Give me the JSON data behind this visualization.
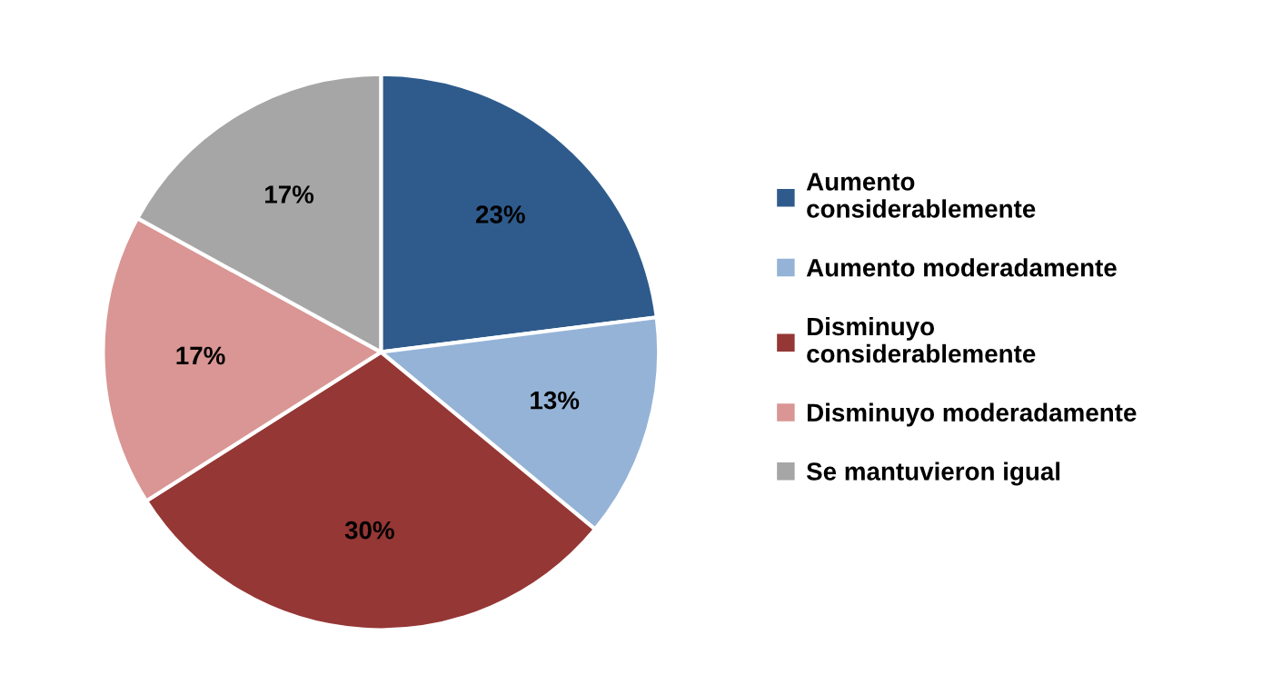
{
  "chart_data": {
    "type": "pie",
    "categories": [
      "Aumento\nconsiderablemente",
      "Aumento moderadamente",
      "Disminuyo\nconsiderablemente",
      "Disminuyo moderadamente",
      "Se mantuvieron igual"
    ],
    "values": [
      23,
      13,
      30,
      17,
      17
    ],
    "colors": [
      "#2f5b8c",
      "#95b3d7",
      "#953735",
      "#d99694",
      "#a6a6a6"
    ],
    "value_labels": [
      "23%",
      "13%",
      "30%",
      "17%",
      "17%"
    ],
    "legend": "right"
  }
}
